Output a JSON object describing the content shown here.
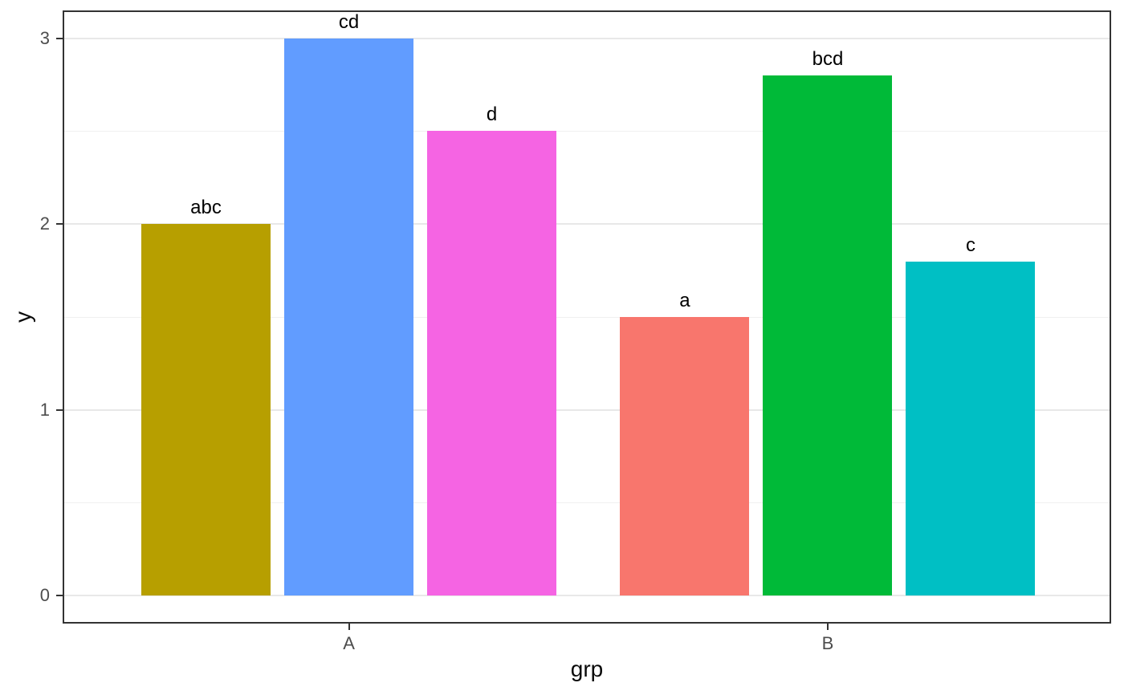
{
  "chart_data": {
    "type": "bar",
    "title": "",
    "xlabel": "grp",
    "ylabel": "y",
    "categories": [
      "A",
      "B"
    ],
    "bars": [
      {
        "group": "A",
        "label": "abc",
        "value": 2.0,
        "color": "#B79F00"
      },
      {
        "group": "A",
        "label": "cd",
        "value": 3.0,
        "color": "#619CFF"
      },
      {
        "group": "A",
        "label": "d",
        "value": 2.5,
        "color": "#F564E3"
      },
      {
        "group": "B",
        "label": "a",
        "value": 1.5,
        "color": "#F8766D"
      },
      {
        "group": "B",
        "label": "bcd",
        "value": 2.8,
        "color": "#00BA38"
      },
      {
        "group": "B",
        "label": "c",
        "value": 1.8,
        "color": "#00BFC4"
      }
    ],
    "y_ticks": [
      {
        "value": 0,
        "label": "0"
      },
      {
        "value": 1,
        "label": "1"
      },
      {
        "value": 2,
        "label": "2"
      },
      {
        "value": 3,
        "label": "3"
      }
    ],
    "y_minor_ticks": [
      0.5,
      1.5,
      2.5
    ],
    "ylim": [
      -0.15,
      3.15
    ],
    "grid": "on",
    "legend": "none",
    "layout_hints": {
      "group_center_frac": [
        0.273,
        0.7297
      ],
      "bar_slot_frac": 0.13629,
      "bar_width_frac": 0.1233
    },
    "panel_border_color": "#333333",
    "major_grid_color": "#e8e8e8",
    "minor_grid_color": "#f0f0f0",
    "axis_text_color": "#4d4d4d"
  }
}
